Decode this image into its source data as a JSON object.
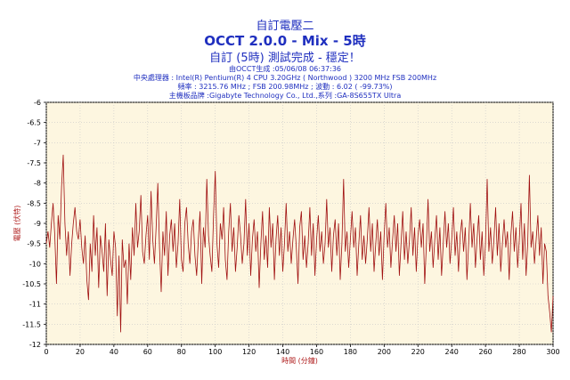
{
  "header": {
    "title": "自訂電壓二",
    "subtitle": "OCCT 2.0.0 - Mix - 5時",
    "status": "自訂 (5時) 測試完成 - 穩定！"
  },
  "info": [
    "由OCCT生成 :05/06/08 06:37:36",
    "中央處理器 : Intel(R) Pentium(R) 4 CPU 3.20GHz ( Northwood ) 3200 MHz FSB 200MHz",
    "頻率 : 3215.76 MHz ; FSB 200.98MHz ; 波動 : 6.02 ( -99.73%)",
    "主機板品牌 :Gigabyte Technology Co., Ltd.,系列 :GA-8S655TX Ultra"
  ],
  "colors": {
    "text": "#1f2fbf",
    "plot_bg": "#fdf6e0",
    "line": "#a01010",
    "axis_label": "#b02020",
    "grid": "#c8c8c8"
  },
  "chart_data": {
    "type": "line",
    "xlabel": "時間 (分鐘)",
    "ylabel": "電壓 (伏特)",
    "xlim": [
      0,
      300
    ],
    "ylim": [
      -12,
      -6
    ],
    "x_ticks": [
      0,
      20,
      40,
      60,
      80,
      100,
      120,
      140,
      160,
      180,
      200,
      220,
      240,
      260,
      280,
      300
    ],
    "y_ticks": [
      -6,
      -6.5,
      -7,
      -7.5,
      -8,
      -8.5,
      -9,
      -9.5,
      -10,
      -10.5,
      -11,
      -11.5,
      -12
    ],
    "grid": true,
    "series": [
      {
        "x_start": 0,
        "x_step": 1,
        "values": [
          -9.5,
          -9.2,
          -9.6,
          -9.0,
          -8.5,
          -9.3,
          -10.5,
          -8.8,
          -9.4,
          -8.1,
          -7.3,
          -9.0,
          -9.8,
          -9.2,
          -10.3,
          -9.5,
          -9.0,
          -8.6,
          -9.2,
          -9.4,
          -8.9,
          -9.6,
          -10.0,
          -9.3,
          -10.4,
          -10.9,
          -9.5,
          -10.2,
          -8.8,
          -9.8,
          -9.1,
          -10.6,
          -9.3,
          -9.7,
          -10.2,
          -9.0,
          -10.8,
          -9.4,
          -9.9,
          -10.3,
          -9.2,
          -9.6,
          -11.3,
          -9.8,
          -11.7,
          -9.4,
          -10.1,
          -9.9,
          -11.0,
          -9.5,
          -10.4,
          -9.1,
          -9.8,
          -8.5,
          -9.6,
          -9.2,
          -8.3,
          -9.7,
          -10.0,
          -9.3,
          -8.8,
          -9.9,
          -8.2,
          -9.4,
          -10.0,
          -9.1,
          -8.0,
          -9.6,
          -10.7,
          -9.2,
          -9.8,
          -8.7,
          -10.3,
          -9.3,
          -8.9,
          -9.7,
          -9.0,
          -10.1,
          -9.5,
          -8.4,
          -9.9,
          -10.2,
          -9.0,
          -8.6,
          -9.5,
          -10.0,
          -9.2,
          -8.9,
          -9.8,
          -10.3,
          -9.4,
          -8.7,
          -10.5,
          -9.1,
          -9.6,
          -7.9,
          -9.3,
          -9.8,
          -10.2,
          -8.8,
          -7.7,
          -9.5,
          -10.1,
          -9.0,
          -9.4,
          -8.6,
          -9.9,
          -10.4,
          -9.2,
          -8.5,
          -9.7,
          -9.1,
          -10.2,
          -9.6,
          -8.8,
          -9.3,
          -10.0,
          -9.5,
          -8.4,
          -9.8,
          -9.0,
          -10.3,
          -9.4,
          -8.9,
          -9.7,
          -9.2,
          -10.6,
          -9.5,
          -8.7,
          -9.9,
          -9.3,
          -10.1,
          -8.6,
          -9.6,
          -9.0,
          -10.4,
          -9.4,
          -8.8,
          -9.8,
          -9.1,
          -10.2,
          -9.5,
          -8.5,
          -9.7,
          -9.2,
          -10.0,
          -9.4,
          -8.9,
          -9.6,
          -10.5,
          -9.1,
          -8.7,
          -9.9,
          -9.3,
          -10.1,
          -9.5,
          -8.6,
          -9.8,
          -9.0,
          -10.3,
          -9.4,
          -8.8,
          -9.7,
          -9.2,
          -10.0,
          -9.5,
          -8.4,
          -9.6,
          -9.1,
          -10.2,
          -9.3,
          -8.9,
          -9.8,
          -9.0,
          -10.4,
          -9.5,
          -7.9,
          -9.7,
          -9.2,
          -10.1,
          -9.4,
          -8.7,
          -9.6,
          -9.1,
          -10.3,
          -9.5,
          -8.8,
          -9.9,
          -9.3,
          -10.0,
          -9.4,
          -8.6,
          -9.7,
          -9.0,
          -10.2,
          -9.5,
          -8.9,
          -9.8,
          -9.2,
          -10.4,
          -9.3,
          -8.5,
          -9.6,
          -9.1,
          -10.1,
          -9.4,
          -8.8,
          -9.7,
          -9.0,
          -10.3,
          -9.5,
          -8.7,
          -9.9,
          -9.2,
          -10.0,
          -9.4,
          -8.6,
          -9.8,
          -9.1,
          -10.2,
          -9.3,
          -8.9,
          -9.6,
          -9.0,
          -10.5,
          -9.5,
          -8.4,
          -9.7,
          -9.2,
          -10.1,
          -9.4,
          -8.8,
          -9.9,
          -9.1,
          -10.3,
          -9.5,
          -8.7,
          -9.6,
          -9.0,
          -10.0,
          -9.4,
          -8.6,
          -9.8,
          -9.2,
          -10.2,
          -9.3,
          -8.9,
          -9.7,
          -9.1,
          -10.4,
          -9.5,
          -8.5,
          -9.6,
          -9.0,
          -10.1,
          -9.4,
          -8.8,
          -9.9,
          -9.2,
          -10.3,
          -9.5,
          -7.9,
          -9.7,
          -9.1,
          -10.0,
          -9.4,
          -8.6,
          -9.8,
          -9.0,
          -10.2,
          -9.5,
          -8.9,
          -9.6,
          -9.2,
          -10.4,
          -9.3,
          -8.7,
          -9.7,
          -9.1,
          -10.1,
          -9.4,
          -8.5,
          -9.9,
          -9.0,
          -10.3,
          -9.5,
          -7.8,
          -9.6,
          -9.2,
          -10.0,
          -9.4,
          -8.8,
          -9.8,
          -9.1,
          -10.5,
          -9.5,
          -9.7,
          -10.8,
          -11.2,
          -11.7,
          -10.8
        ]
      }
    ]
  }
}
